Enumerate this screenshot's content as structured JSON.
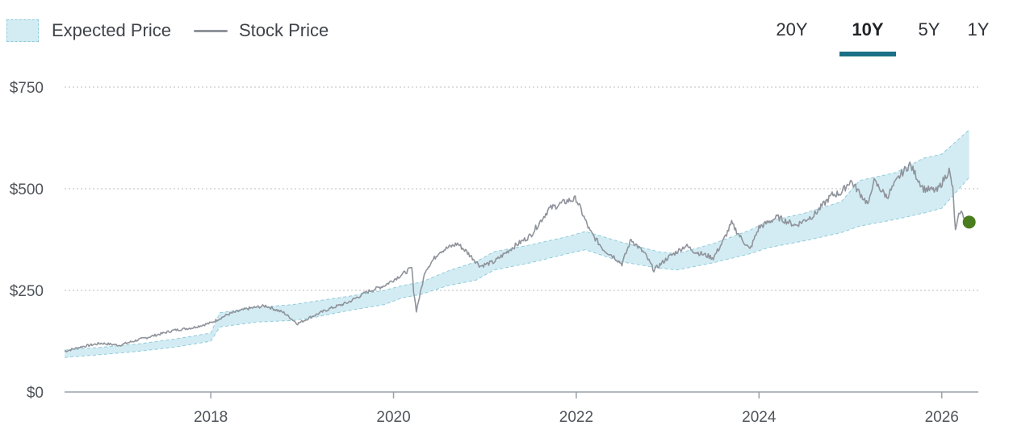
{
  "legend": {
    "expected_label": "Expected Price",
    "stock_label": "Stock Price"
  },
  "tabs": [
    {
      "label": "20Y",
      "active": false
    },
    {
      "label": "10Y",
      "active": true
    },
    {
      "label": "5Y",
      "active": false
    },
    {
      "label": "1Y",
      "active": false
    }
  ],
  "colors": {
    "band_fill": "#d3ecf3",
    "band_border": "#8fcbdc",
    "stock_line": "#8f939b",
    "current_dot": "#4a7d1f",
    "tab_accent": "#1b6f86",
    "grid": "#b8bcc0"
  },
  "chart_data": {
    "type": "line",
    "title": "",
    "xlabel": "",
    "ylabel": "",
    "x_range": [
      2016.4,
      2026.4
    ],
    "ylim": [
      0,
      750
    ],
    "y_ticks": [
      {
        "value": 0,
        "label": "$0"
      },
      {
        "value": 250,
        "label": "$250"
      },
      {
        "value": 500,
        "label": "$500"
      },
      {
        "value": 750,
        "label": "$750"
      }
    ],
    "x_ticks": [
      {
        "value": 2018,
        "label": "2018"
      },
      {
        "value": 2020,
        "label": "2020"
      },
      {
        "value": 2022,
        "label": "2022"
      },
      {
        "value": 2024,
        "label": "2024"
      },
      {
        "value": 2026,
        "label": "2026"
      }
    ],
    "grid": true,
    "legend_position": "top-left",
    "series": [
      {
        "name": "Expected Price",
        "type": "band",
        "x": [
          2016.4,
          2016.8,
          2017.2,
          2017.6,
          2018.0,
          2018.1,
          2018.5,
          2018.9,
          2019.1,
          2019.5,
          2019.9,
          2020.1,
          2020.3,
          2020.6,
          2020.9,
          2021.1,
          2021.5,
          2021.9,
          2022.1,
          2022.5,
          2022.9,
          2023.1,
          2023.5,
          2023.9,
          2024.1,
          2024.5,
          2024.9,
          2025.1,
          2025.5,
          2025.8,
          2026.0,
          2026.3
        ],
        "lower": [
          85,
          92,
          100,
          110,
          125,
          160,
          172,
          176,
          182,
          200,
          215,
          232,
          240,
          262,
          275,
          300,
          318,
          340,
          350,
          320,
          305,
          300,
          318,
          340,
          355,
          372,
          392,
          408,
          425,
          440,
          452,
          528
        ],
        "upper": [
          103,
          110,
          118,
          130,
          145,
          195,
          208,
          215,
          222,
          235,
          250,
          262,
          270,
          298,
          320,
          345,
          362,
          382,
          395,
          368,
          345,
          340,
          365,
          398,
          420,
          440,
          468,
          520,
          540,
          575,
          585,
          645
        ]
      },
      {
        "name": "Stock Price",
        "type": "line",
        "x": [
          2016.4,
          2016.6,
          2016.8,
          2017.0,
          2017.2,
          2017.4,
          2017.6,
          2017.8,
          2018.0,
          2018.2,
          2018.4,
          2018.6,
          2018.8,
          2018.95,
          2019.1,
          2019.3,
          2019.5,
          2019.7,
          2019.9,
          2020.1,
          2020.2,
          2020.22,
          2020.25,
          2020.35,
          2020.5,
          2020.7,
          2020.8,
          2020.95,
          2021.1,
          2021.3,
          2021.5,
          2021.7,
          2021.9,
          2022.0,
          2022.15,
          2022.3,
          2022.4,
          2022.5,
          2022.6,
          2022.75,
          2022.85,
          2023.0,
          2023.2,
          2023.3,
          2023.5,
          2023.6,
          2023.7,
          2023.8,
          2023.9,
          2024.0,
          2024.2,
          2024.4,
          2024.6,
          2024.8,
          2024.9,
          2025.0,
          2025.2,
          2025.25,
          2025.4,
          2025.55,
          2025.65,
          2025.8,
          2025.95,
          2026.08,
          2026.12,
          2026.15,
          2026.2,
          2026.25,
          2026.3
        ],
        "values": [
          100,
          112,
          120,
          115,
          128,
          140,
          152,
          158,
          170,
          192,
          205,
          212,
          195,
          168,
          185,
          205,
          220,
          245,
          262,
          290,
          305,
          250,
          200,
          300,
          345,
          365,
          345,
          310,
          320,
          355,
          385,
          450,
          470,
          475,
          395,
          350,
          335,
          315,
          375,
          340,
          300,
          330,
          360,
          345,
          330,
          368,
          415,
          380,
          350,
          405,
          430,
          410,
          435,
          485,
          490,
          520,
          460,
          520,
          480,
          535,
          560,
          500,
          495,
          545,
          500,
          395,
          445,
          430,
          418
        ]
      }
    ],
    "current_point": {
      "x": 2026.3,
      "value": 418
    }
  }
}
